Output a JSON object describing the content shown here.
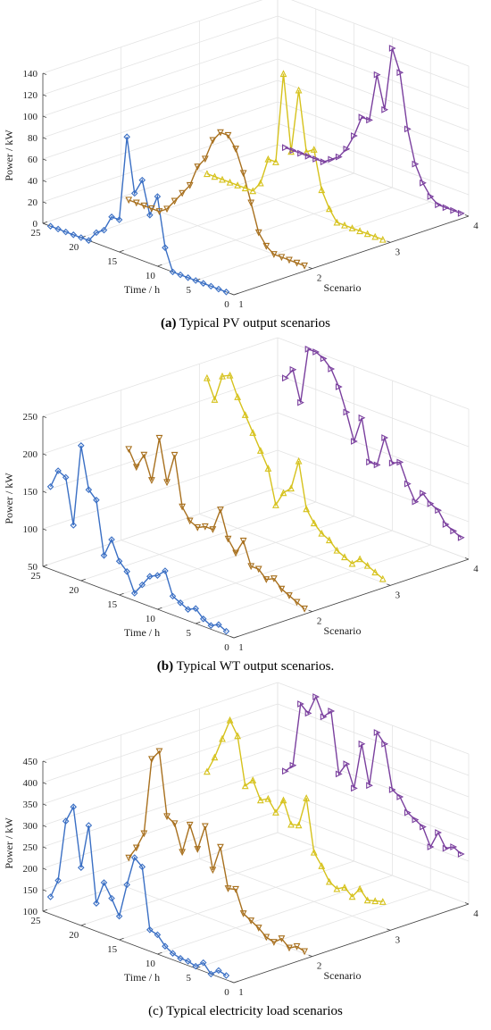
{
  "chart_data": [
    {
      "type": "line3d",
      "caption_label": "(a)",
      "caption_bold": true,
      "title": "Typical PV output scenarios",
      "zlabel": "Power / kW",
      "xlabel": "Time / h",
      "ylabel": "Scenario",
      "x": [
        24,
        23,
        22,
        21,
        20,
        19,
        18,
        17,
        16,
        15,
        14,
        13,
        12,
        11,
        10,
        9,
        8,
        7,
        6,
        5,
        4,
        3,
        2,
        1
      ],
      "xlim": [
        0,
        25
      ],
      "xticks": [
        0,
        5,
        10,
        15,
        20,
        25
      ],
      "ylim": [
        1,
        4
      ],
      "yticks": [
        1,
        2,
        3,
        4
      ],
      "zlim": [
        0,
        140
      ],
      "zticks": [
        0,
        20,
        40,
        60,
        80,
        100,
        120,
        140
      ],
      "grid": true,
      "series": [
        {
          "scenario": 1,
          "color": "#3a6fc4",
          "marker": "diamond",
          "values": [
            0,
            0,
            0,
            0,
            0,
            0,
            10,
            15,
            30,
            30,
            110,
            60,
            75,
            45,
            65,
            20,
            0,
            0,
            0,
            0,
            0,
            0,
            0,
            0
          ]
        },
        {
          "scenario": 2,
          "color": "#a8701e",
          "marker": "triangle-down",
          "values": [
            0,
            0,
            0,
            0,
            0,
            5,
            15,
            25,
            35,
            55,
            65,
            85,
            95,
            95,
            85,
            65,
            40,
            15,
            5,
            0,
            0,
            0,
            0,
            0
          ]
        },
        {
          "scenario": 3,
          "color": "#d6c21c",
          "marker": "triangle-up",
          "values": [
            0,
            0,
            0,
            0,
            0,
            0,
            0,
            10,
            35,
            35,
            120,
            50,
            110,
            55,
            60,
            25,
            10,
            0,
            0,
            0,
            0,
            0,
            0,
            0
          ]
        },
        {
          "scenario": 4,
          "color": "#7a3f9e",
          "marker": "triangle-right",
          "values": [
            0,
            0,
            0,
            0,
            0,
            0,
            5,
            10,
            20,
            35,
            55,
            55,
            100,
            70,
            130,
            110,
            60,
            30,
            15,
            5,
            0,
            0,
            0,
            0
          ]
        }
      ]
    },
    {
      "type": "line3d",
      "caption_label": "(b)",
      "caption_bold": true,
      "title": "Typical WT output scenarios.",
      "zlabel": "Power / kW",
      "xlabel": "Time / h",
      "ylabel": "Scenario",
      "x": [
        24,
        23,
        22,
        21,
        20,
        19,
        18,
        17,
        16,
        15,
        14,
        13,
        12,
        11,
        10,
        9,
        8,
        7,
        6,
        5,
        4,
        3,
        2,
        1
      ],
      "xlim": [
        0,
        25
      ],
      "xticks": [
        0,
        5,
        10,
        15,
        20,
        25
      ],
      "ylim": [
        1,
        4
      ],
      "yticks": [
        1,
        2,
        3,
        4
      ],
      "zlim": [
        50,
        250
      ],
      "zticks": [
        50,
        100,
        150,
        200,
        250
      ],
      "grid": true,
      "series": [
        {
          "scenario": 1,
          "color": "#3a6fc4",
          "marker": "diamond",
          "values": [
            160,
            185,
            180,
            120,
            230,
            175,
            165,
            95,
            120,
            95,
            85,
            60,
            75,
            90,
            95,
            105,
            75,
            70,
            65,
            70,
            60,
            55,
            60,
            55
          ]
        },
        {
          "scenario": 2,
          "color": "#a8701e",
          "marker": "triangle-down",
          "values": [
            175,
            155,
            175,
            145,
            205,
            150,
            190,
            125,
            110,
            105,
            110,
            110,
            140,
            105,
            90,
            110,
            80,
            80,
            70,
            75,
            65,
            60,
            55,
            50
          ]
        },
        {
          "scenario": 3,
          "color": "#d6c21c",
          "marker": "triangle-up",
          "values": [
            235,
            210,
            245,
            250,
            225,
            205,
            185,
            165,
            145,
            100,
            120,
            130,
            170,
            110,
            95,
            85,
            80,
            70,
            65,
            60,
            70,
            65,
            60,
            55
          ]
        },
        {
          "scenario": 4,
          "color": "#7a3f9e",
          "marker": "triangle-right",
          "values": [
            200,
            215,
            175,
            250,
            250,
            245,
            235,
            215,
            185,
            150,
            185,
            130,
            130,
            170,
            140,
            145,
            120,
            100,
            115,
            105,
            100,
            85,
            80,
            75
          ]
        }
      ]
    },
    {
      "type": "line3d",
      "caption_label": "(c)",
      "caption_bold": false,
      "title": "Typical electricity load scenarios",
      "zlabel": "Power / kW",
      "xlabel": "Time / h",
      "ylabel": "Scenario",
      "x": [
        24,
        23,
        22,
        21,
        20,
        19,
        18,
        17,
        16,
        15,
        14,
        13,
        12,
        11,
        10,
        9,
        8,
        7,
        6,
        5,
        4,
        3,
        2,
        1
      ],
      "xlim": [
        0,
        25
      ],
      "xticks": [
        0,
        5,
        10,
        15,
        20,
        25
      ],
      "ylim": [
        1,
        4
      ],
      "yticks": [
        1,
        2,
        3,
        4
      ],
      "zlim": [
        100,
        450
      ],
      "zticks": [
        100,
        150,
        200,
        250,
        300,
        350,
        400,
        450
      ],
      "grid": true,
      "series": [
        {
          "scenario": 1,
          "color": "#3a6fc4",
          "marker": "diamond",
          "values": [
            140,
            185,
            330,
            370,
            235,
            340,
            165,
            220,
            190,
            155,
            235,
            305,
            290,
            150,
            145,
            125,
            115,
            110,
            110,
            105,
            120,
            100,
            115,
            110
          ]
        },
        {
          "scenario": 2,
          "color": "#a8701e",
          "marker": "triangle-down",
          "values": [
            170,
            200,
            240,
            420,
            445,
            300,
            290,
            230,
            300,
            250,
            310,
            215,
            275,
            185,
            190,
            140,
            130,
            120,
            105,
            100,
            115,
            100,
            110,
            105
          ]
        },
        {
          "scenario": 3,
          "color": "#d6c21c",
          "marker": "triangle-up",
          "values": [
            310,
            350,
            400,
            450,
            420,
            310,
            330,
            290,
            300,
            275,
            310,
            260,
            265,
            335,
            215,
            190,
            160,
            150,
            160,
            145,
            170,
            150,
            155,
            160
          ]
        },
        {
          "scenario": 4,
          "color": "#7a3f9e",
          "marker": "triangle-right",
          "values": [
            250,
            270,
            420,
            405,
            450,
            410,
            430,
            290,
            320,
            270,
            380,
            290,
            420,
            400,
            300,
            290,
            260,
            250,
            240,
            200,
            240,
            210,
            220,
            210
          ]
        }
      ]
    }
  ]
}
